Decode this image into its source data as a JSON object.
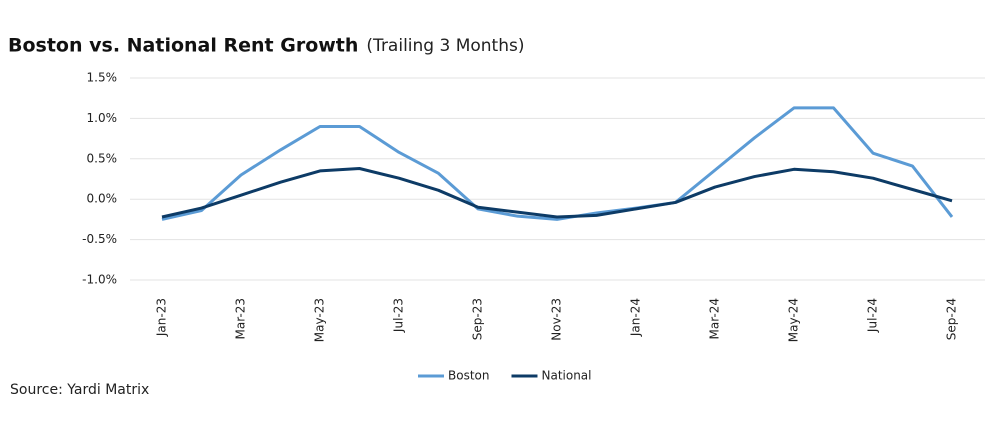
{
  "chart_data": {
    "type": "line",
    "title": "Boston vs. National Rent Growth",
    "subtitle": "(Trailing 3 Months)",
    "source": "Source: Yardi Matrix",
    "categories": [
      "Jan-23",
      null,
      "Mar-23",
      null,
      "May-23",
      null,
      "Jul-23",
      null,
      "Sep-23",
      null,
      "Nov-23",
      null,
      "Jan-24",
      null,
      "Mar-24",
      null,
      "May-24",
      null,
      "Jul-24",
      null,
      "Sep-24"
    ],
    "series": [
      {
        "name": "Boston",
        "color": "#5b9bd5",
        "values": [
          -0.25,
          -0.14,
          0.3,
          0.61,
          0.9,
          0.9,
          0.58,
          0.32,
          -0.12,
          -0.21,
          -0.25,
          -0.17,
          -0.11,
          -0.04,
          0.36,
          0.76,
          1.13,
          1.13,
          0.57,
          0.41,
          -0.22
        ]
      },
      {
        "name": "National",
        "color": "#0d3b66",
        "values": [
          -0.22,
          -0.11,
          0.05,
          0.21,
          0.35,
          0.38,
          0.26,
          0.11,
          -0.1,
          -0.16,
          -0.22,
          -0.2,
          -0.12,
          -0.04,
          0.15,
          0.28,
          0.37,
          0.34,
          0.26,
          0.12,
          -0.02
        ]
      }
    ],
    "ylim": [
      -1.0,
      1.5
    ],
    "yticks": [
      {
        "value": -1.0,
        "label": "-1.0%"
      },
      {
        "value": -0.5,
        "label": "-0.5%"
      },
      {
        "value": 0,
        "label": "0.0%"
      },
      {
        "value": 0.5,
        "label": "0.5%"
      },
      {
        "value": 1.0,
        "label": "1.0%"
      },
      {
        "value": 1.5,
        "label": "1.5%"
      }
    ],
    "grid": true,
    "legend": "bottom"
  }
}
